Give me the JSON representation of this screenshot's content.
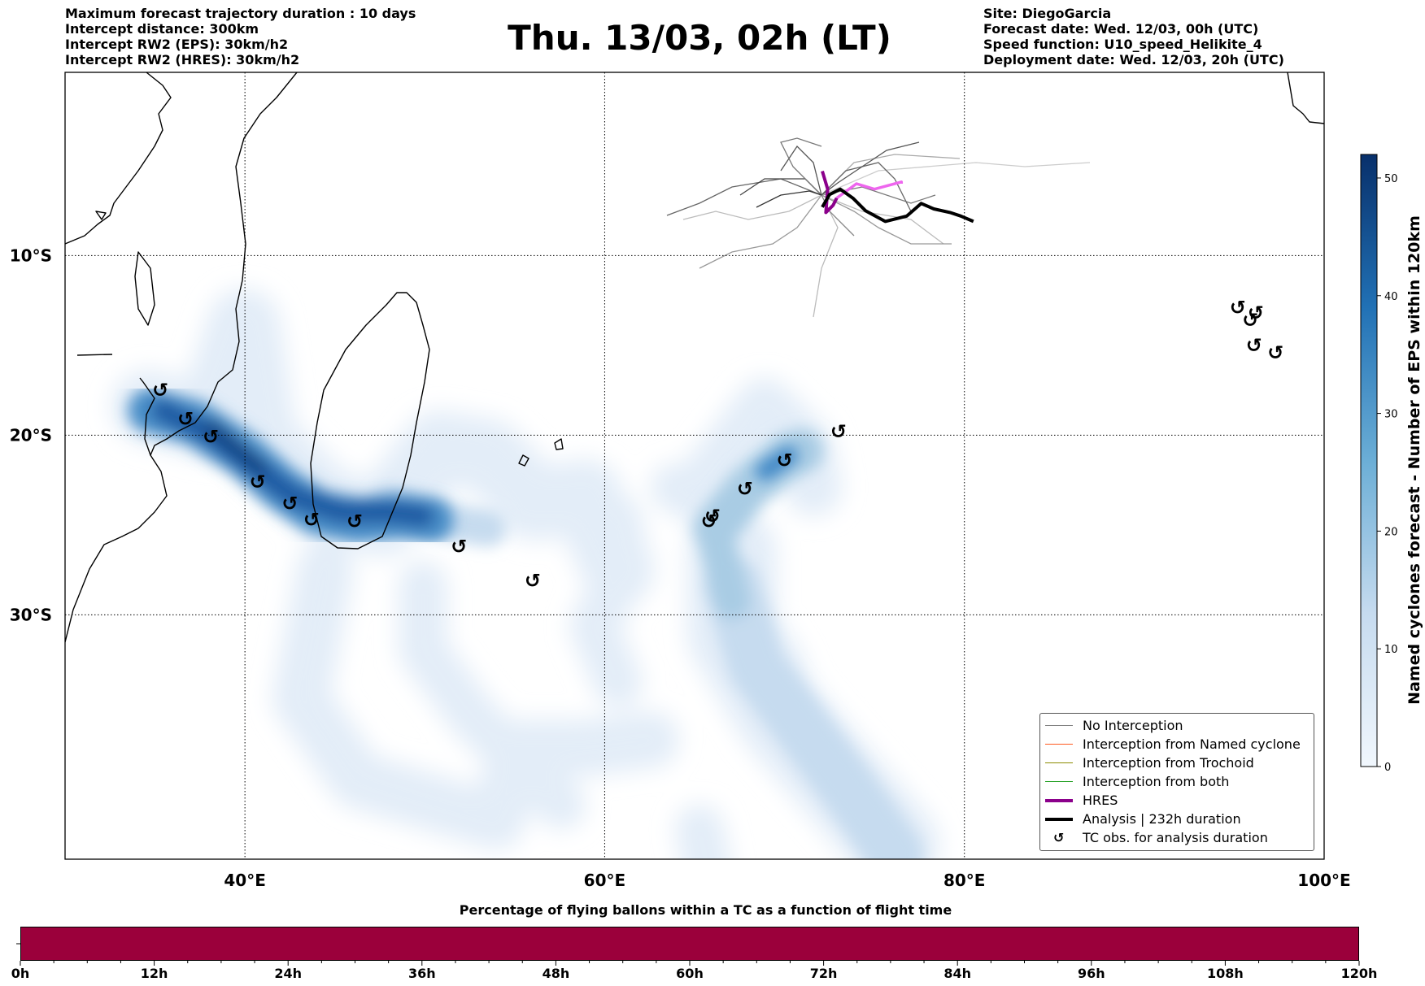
{
  "header": {
    "left": [
      "Maximum forecast trajectory duration : 10 days",
      "Intercept distance: 300km",
      "Intercept RW2 (EPS):  30km/h2",
      "Intercept RW2 (HRES): 30km/h2"
    ],
    "right": [
      "Site: DiegoGarcia",
      "Forecast date: Wed. 12/03, 00h (UTC)",
      "Speed function: U10_speed_Helikite_4",
      "Deployment date: Wed. 12/03, 20h (UTC)"
    ],
    "title": "Thu. 13/03, 02h (LT)"
  },
  "map": {
    "lon_range": [
      30,
      100
    ],
    "lat_range": [
      -43.6,
      0.2
    ],
    "lon_ticks": [
      {
        "value": 40,
        "label": "40°E"
      },
      {
        "value": 60,
        "label": "60°E"
      },
      {
        "value": 80,
        "label": "80°E"
      },
      {
        "value": 100,
        "label": "100°E"
      }
    ],
    "lat_ticks": [
      {
        "value": -10,
        "label": "10°S"
      },
      {
        "value": -20,
        "label": "20°S"
      },
      {
        "value": -30,
        "label": "30°S"
      }
    ],
    "coastline_color": "#000000",
    "gridline_style": "dotted",
    "tc_symbol": "↺",
    "tc_observations": [
      [
        35.3,
        -17.5
      ],
      [
        36.7,
        -19.1
      ],
      [
        38.1,
        -20.1
      ],
      [
        40.7,
        -22.6
      ],
      [
        42.5,
        -23.8
      ],
      [
        43.7,
        -24.7
      ],
      [
        46.1,
        -24.8
      ],
      [
        51.9,
        -26.2
      ],
      [
        56.0,
        -28.1
      ],
      [
        65.8,
        -24.8
      ],
      [
        66.0,
        -24.5
      ],
      [
        67.8,
        -23.0
      ],
      [
        70.0,
        -21.4
      ],
      [
        73.0,
        -19.8
      ],
      [
        95.2,
        -12.9
      ],
      [
        95.9,
        -13.6
      ],
      [
        96.2,
        -13.2
      ],
      [
        96.1,
        -15.0
      ],
      [
        97.3,
        -15.4
      ]
    ],
    "tracks": {
      "hres": [
        [
          72.1,
          -5.3
        ],
        [
          72.4,
          -6.3
        ],
        [
          72.3,
          -7.6
        ],
        [
          72.7,
          -7.2
        ],
        [
          72.9,
          -6.8
        ]
      ],
      "hres_light": [
        [
          72.9,
          -6.8
        ],
        [
          74.0,
          -6.0
        ],
        [
          75.0,
          -6.3
        ],
        [
          76.5,
          -5.9
        ],
        [
          76.5,
          -6.0
        ]
      ],
      "analysis": [
        [
          72.1,
          -7.3
        ],
        [
          72.5,
          -6.6
        ],
        [
          73.1,
          -6.3
        ],
        [
          73.8,
          -6.8
        ],
        [
          74.5,
          -7.5
        ],
        [
          75.6,
          -8.1
        ],
        [
          76.8,
          -7.8
        ],
        [
          77.6,
          -7.1
        ],
        [
          78.3,
          -7.4
        ],
        [
          79.2,
          -7.6
        ],
        [
          79.8,
          -7.8
        ],
        [
          80.5,
          -8.1
        ]
      ]
    },
    "density_max": 52
  },
  "colorbar": {
    "label": "Named cyclones forecast - Number of EPS within 120km",
    "ticks": [
      0,
      10,
      20,
      30,
      40,
      50
    ],
    "max": 52,
    "color_low": "#f1f7fd",
    "color_high": "#08306b"
  },
  "legend": {
    "items": [
      {
        "label": "No Interception",
        "color": "#808080",
        "style": "line-thin"
      },
      {
        "label": "Interception from Named cyclone",
        "color": "#ff5a1f",
        "style": "line-thin"
      },
      {
        "label": "Interception from Trochoid",
        "color": "#8b8b00",
        "style": "line-thin"
      },
      {
        "label": "Interception from both",
        "color": "#1f9e1f",
        "style": "line-thin"
      },
      {
        "label": "HRES",
        "color": "#8b008b",
        "style": "line-thick"
      },
      {
        "label": "Analysis | 232h duration",
        "color": "#000000",
        "style": "line-thick"
      },
      {
        "label": "TC obs. for analysis duration",
        "color": "#000000",
        "style": "symbol"
      }
    ]
  },
  "progress_bar": {
    "title": "Percentage of flying ballons within a TC as a function of flight time",
    "color": "#9b003b",
    "ticks": [
      "0h",
      "12h",
      "24h",
      "36h",
      "48h",
      "60h",
      "72h",
      "84h",
      "96h",
      "108h",
      "120h"
    ]
  }
}
